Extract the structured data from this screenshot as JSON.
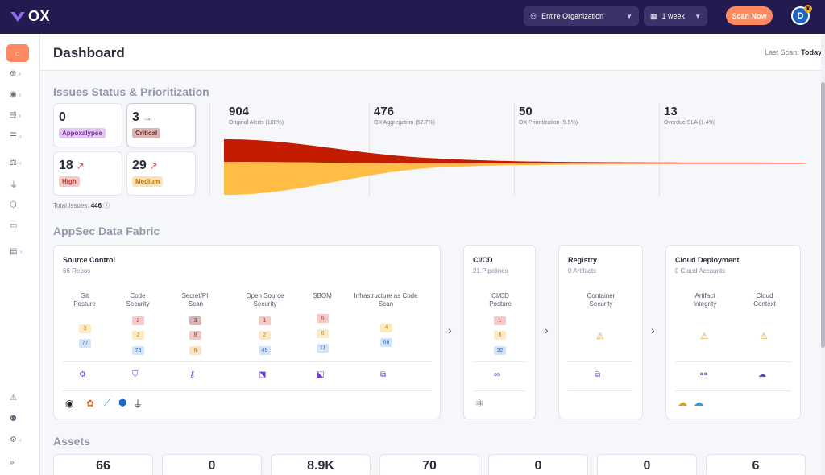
{
  "brand": {
    "logo_text": "OX"
  },
  "topbar": {
    "org_select": "Entire Organization",
    "range_select": "1 week",
    "scan_button": "Scan Now",
    "avatar_initial": "D"
  },
  "header": {
    "title": "Dashboard",
    "last_scan_label": "Last Scan:",
    "last_scan_value": "Today"
  },
  "issues": {
    "title": "Issues Status & Prioritization",
    "cards": [
      {
        "value": "0",
        "label": "Appoxalypse",
        "trend": ""
      },
      {
        "value": "3",
        "label": "Critical",
        "trend": "→"
      },
      {
        "value": "18",
        "label": "High",
        "trend": "↗"
      },
      {
        "value": "29",
        "label": "Medium",
        "trend": "↗"
      }
    ],
    "total_label": "Total Issues:",
    "total_value": "446",
    "funnel": [
      {
        "value": "904",
        "label": "Original Alerts (100%)"
      },
      {
        "value": "476",
        "label": "OX Aggregation (52.7%)"
      },
      {
        "value": "50",
        "label": "OX Prioritization (5.5%)"
      },
      {
        "value": "13",
        "label": "Overdue SLA (1.4%)"
      }
    ]
  },
  "fabric": {
    "title": "AppSec Data Fabric",
    "source_control": {
      "title": "Source Control",
      "sub": "66 Repos",
      "categories": [
        {
          "label": "Git\nPosture",
          "pills": [
            "3",
            "77"
          ]
        },
        {
          "label": "Code\nSecurity",
          "pills": [
            "2",
            "2",
            "73"
          ]
        },
        {
          "label": "Secret/PII\nScan",
          "pills": [
            "3",
            "8",
            "6"
          ]
        },
        {
          "label": "Open Source\nSecurity",
          "pills": [
            "1",
            "2",
            "49"
          ]
        },
        {
          "label": "SBOM",
          "pills": [
            "6",
            "6",
            "11"
          ]
        },
        {
          "label": "Infrastructure as Code\nScan",
          "pills": [
            "4",
            "66"
          ]
        }
      ]
    },
    "cicd": {
      "title": "CI/CD",
      "sub": "21 Pipelines",
      "categories": [
        {
          "label": "CI/CD\nPosture",
          "pills": [
            "1",
            "6",
            "32"
          ]
        }
      ]
    },
    "registry": {
      "title": "Registry",
      "sub": "0 Artifacts",
      "categories": [
        {
          "label": "Container\nSecurity"
        }
      ]
    },
    "cloud": {
      "title": "Cloud Deployment",
      "sub": "0 Cloud Accounts",
      "categories": [
        {
          "label": "Artifact\nIntegrity"
        },
        {
          "label": "Cloud\nContext"
        }
      ]
    }
  },
  "assets": {
    "title": "Assets",
    "values": [
      "66",
      "0",
      "8.9K",
      "70",
      "0",
      "0",
      "6"
    ]
  },
  "colors": {
    "topbar": "#231b4f",
    "accent": "#ff8a62",
    "critical": "#c41c00",
    "medium": "#ffbd45"
  }
}
